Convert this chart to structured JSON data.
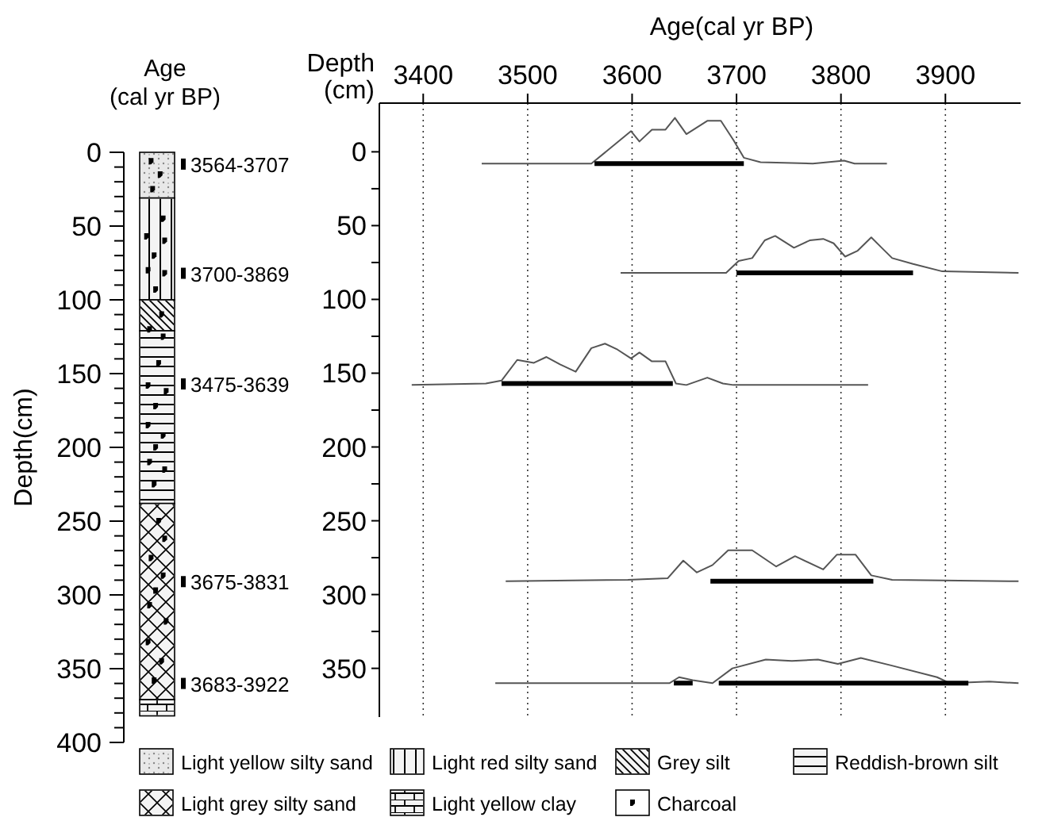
{
  "chart_data": [
    {
      "type": "bar",
      "stacked": true,
      "title": "Age (cal yr BP)",
      "ylabel": "Depth(cm)",
      "categories": [
        null
      ],
      "ylim": [
        400,
        0
      ],
      "yticks": [
        0,
        {
          "value": 10,
          "label": null
        },
        {
          "value": 20,
          "label": null
        },
        {
          "value": 30,
          "label": null
        },
        {
          "value": 40,
          "label": null
        },
        50,
        {
          "value": 60,
          "label": null
        },
        {
          "value": 70,
          "label": null
        },
        {
          "value": 80,
          "label": null
        },
        {
          "value": 90,
          "label": null
        },
        100,
        {
          "value": 110,
          "label": null
        },
        {
          "value": 120,
          "label": null
        },
        {
          "value": 130,
          "label": null
        },
        {
          "value": 140,
          "label": null
        },
        150,
        {
          "value": 160,
          "label": null
        },
        {
          "value": 170,
          "label": null
        },
        {
          "value": 180,
          "label": null
        },
        {
          "value": 190,
          "label": null
        },
        200,
        {
          "value": 210,
          "label": null
        },
        {
          "value": 220,
          "label": null
        },
        {
          "value": 230,
          "label": null
        },
        {
          "value": 240,
          "label": null
        },
        250,
        {
          "value": 260,
          "label": null
        },
        {
          "value": 270,
          "label": null
        },
        {
          "value": 280,
          "label": null
        },
        {
          "value": 290,
          "label": null
        },
        300,
        {
          "value": 310,
          "label": null
        },
        {
          "value": 320,
          "label": null
        },
        {
          "value": 330,
          "label": null
        },
        {
          "value": 340,
          "label": null
        },
        350,
        {
          "value": 360,
          "label": null
        },
        {
          "value": 370,
          "label": null
        },
        {
          "value": 380,
          "label": null
        },
        {
          "value": 390,
          "label": null
        },
        400
      ],
      "legend": "bottom",
      "series": [
        {
          "name": "Light yellow silty sand",
          "color": "#e8e8e8",
          "values": [
            31
          ]
        },
        {
          "name": "Light red silty sand",
          "color": "#f4f4f4",
          "values": [
            69
          ]
        },
        {
          "name": "Grey silt",
          "color": "#f4f4f4",
          "values": [
            21
          ]
        },
        {
          "name": "Reddish-brown silt",
          "color": "#f4f4f4",
          "values": [
            117
          ]
        },
        {
          "name": "Light grey silty sand",
          "color": "#f4f4f4",
          "values": [
            133
          ]
        },
        {
          "name": "Light yellow clay",
          "color": "#f4f4f4",
          "values": [
            11
          ]
        }
      ],
      "annotations": [
        "3564-3707",
        "3700-3869",
        "3475-3639",
        "3675-3831",
        "3683-3922",
        "Charcoal"
      ]
    },
    {
      "type": "line",
      "xlabel": "Age(cal yr BP)",
      "ylabel": "Depth (cm)",
      "xlim": [
        3358,
        3972
      ],
      "xticks": [
        3400,
        3500,
        3600,
        3700,
        3800,
        3900
      ],
      "ylim": [
        383,
        -33
      ],
      "yticks": [
        0,
        {
          "value": 25,
          "label": null
        },
        50,
        {
          "value": 75,
          "label": null
        },
        100,
        {
          "value": 125,
          "label": null
        },
        150,
        {
          "value": 175,
          "label": null
        },
        200,
        {
          "value": 225,
          "label": null
        },
        250,
        {
          "value": 275,
          "label": null
        },
        300,
        {
          "value": 325,
          "label": null
        },
        350
      ],
      "grid": "x",
      "line_style": "solid",
      "marker": "none",
      "series": [
        {
          "color": "#555555",
          "x": [
            3456,
            3561,
            3599,
            3607,
            3619,
            3632,
            3641,
            3652,
            3672,
            3685,
            3697,
            3707,
            3723,
            3773,
            3803,
            3813,
            3844
          ],
          "values": [
            8,
            8,
            -14,
            -7,
            -15,
            -15,
            -23,
            -12,
            -21,
            -21,
            -8,
            4,
            7,
            8,
            6,
            8,
            8
          ]
        },
        {
          "color": "#000000",
          "x": [
            3564,
            3707
          ],
          "values": [
            8,
            8
          ]
        },
        {
          "color": "#555555",
          "x": [
            3589,
            3690,
            3702,
            3715,
            3727,
            3737,
            3755,
            3770,
            3783,
            3793,
            3804,
            3816,
            3829,
            3839,
            3849,
            3869,
            3897,
            3970
          ],
          "values": [
            82,
            82,
            74,
            72,
            60,
            57,
            65,
            60,
            59,
            62,
            71,
            67,
            58,
            65,
            72,
            76,
            81,
            82
          ]
        },
        {
          "color": "#000000",
          "x": [
            3700,
            3869
          ],
          "values": [
            82,
            82
          ]
        },
        {
          "color": "#555555",
          "x": [
            3389,
            3460,
            3475,
            3490,
            3506,
            3518,
            3531,
            3546,
            3561,
            3574,
            3586,
            3599,
            3607,
            3619,
            3632,
            3642,
            3652,
            3672,
            3687,
            3697,
            3826
          ],
          "values": [
            158,
            157,
            155,
            141,
            143,
            139,
            144,
            149,
            133,
            130,
            134,
            140,
            136,
            142,
            142,
            157,
            158,
            153,
            157,
            158,
            158
          ]
        },
        {
          "color": "#000000",
          "x": [
            3475,
            3639
          ],
          "values": [
            157,
            157
          ]
        },
        {
          "color": "#555555",
          "x": [
            3479,
            3596,
            3634,
            3649,
            3662,
            3677,
            3692,
            3715,
            3738,
            3756,
            3783,
            3796,
            3814,
            3829,
            3849,
            3970
          ],
          "values": [
            291,
            290,
            289,
            277,
            285,
            280,
            270,
            270,
            281,
            274,
            283,
            273,
            273,
            287,
            290,
            291
          ]
        },
        {
          "color": "#000000",
          "x": [
            3675,
            3831
          ],
          "values": [
            291,
            291
          ]
        },
        {
          "color": "#555555",
          "x": [
            3469,
            3636,
            3645,
            3658,
            3677,
            3696,
            3728,
            3753,
            3778,
            3797,
            3819,
            3848,
            3892,
            3904,
            3942,
            3970
          ],
          "values": [
            360,
            360,
            356,
            358,
            360,
            350,
            344,
            345,
            344,
            347,
            343,
            348,
            356,
            360,
            359,
            360
          ]
        },
        {
          "color": "#000000",
          "x": [
            3640,
            3658
          ],
          "values": [
            360,
            360
          ]
        },
        {
          "color": "#000000",
          "x": [
            3683,
            3922
          ],
          "values": [
            360,
            360
          ]
        }
      ]
    }
  ]
}
